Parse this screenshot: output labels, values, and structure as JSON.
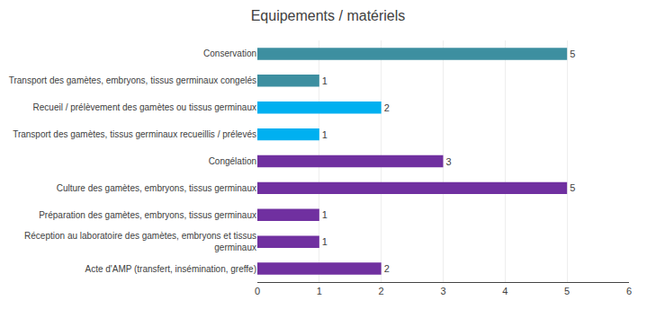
{
  "chart_data": {
    "type": "bar",
    "orientation": "horizontal",
    "title": "Equipements / matériels",
    "categories": [
      "Conservation",
      "Transport des gamètes, embryons, tissus germinaux congelés",
      "Recueil / prélèvement des gamètes ou tissus germinaux",
      "Transport des gamètes, tissus germinaux recueillis / prélevés",
      "Congélation",
      "Culture des gamètes, embryons, tissus germinaux",
      "Préparation des gamètes, embryons, tissus germinaux",
      "Réception au laboratoire des gamètes, embryons et tissus\ngerminaux",
      "Acte d'AMP (transfert, insémination, greffe)"
    ],
    "values": [
      5,
      1,
      2,
      1,
      3,
      5,
      1,
      1,
      2
    ],
    "colors": [
      "#3d8fa0",
      "#3d8fa0",
      "#00b0f0",
      "#00b0f0",
      "#7030a0",
      "#7030a0",
      "#7030a0",
      "#7030a0",
      "#7030a0"
    ],
    "xlim": [
      0,
      6
    ],
    "xticks": [
      0,
      1,
      2,
      3,
      4,
      5,
      6
    ],
    "grid": true,
    "data_labels": true
  }
}
